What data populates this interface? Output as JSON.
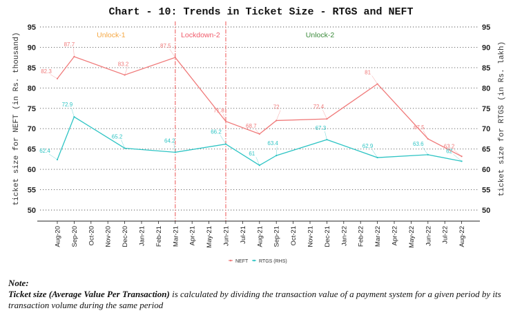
{
  "chart_data": {
    "type": "line",
    "title": "Chart - 10: Trends in Ticket Size - RTGS and NEFT",
    "xlabel": "",
    "ylabel": "ticket size for NEFT (in Rs. thousand)",
    "ylabel_right": "ticket size for RTGS (in Rs. lakh)",
    "ylim": [
      47.5,
      97.5
    ],
    "yticks": [
      50,
      55,
      60,
      65,
      70,
      75,
      80,
      85,
      90,
      95
    ],
    "ylim_right": [
      47.5,
      97.5
    ],
    "yticks_right": [
      50,
      55,
      60,
      65,
      70,
      75,
      80,
      85,
      90,
      95
    ],
    "grid": "horizontal-dotted",
    "categories": [
      "Aug-20",
      "Sep-20",
      "Oct-20",
      "Nov-20",
      "Dec-20",
      "Jan-21",
      "Feb-21",
      "Mar-21",
      "Apr-21",
      "May-21",
      "Jun-21",
      "Jul-21",
      "Aug-21",
      "Sep-21",
      "Oct-21",
      "Nov-21",
      "Dec-21",
      "Jan-22",
      "Feb-22",
      "Mar-22",
      "Apr-22",
      "May-22",
      "Jun-22",
      "Jul-22",
      "Aug-22"
    ],
    "series": [
      {
        "name": "NEFT",
        "color": "#f07a7a",
        "points": [
          {
            "x": "Aug-20",
            "y": 82.3,
            "label": "82.3"
          },
          {
            "x": "Sep-20",
            "y": 87.7,
            "label": "87.7"
          },
          {
            "x": "Dec-20",
            "y": 83.2,
            "label": "83.2"
          },
          {
            "x": "Mar-21",
            "y": 87.5,
            "label": "87.5"
          },
          {
            "x": "Jun-21",
            "y": 71.8,
            "label": "71.8"
          },
          {
            "x": "Aug-21",
            "y": 68.7,
            "label": "68.7"
          },
          {
            "x": "Sep-21",
            "y": 72.0,
            "label": "72"
          },
          {
            "x": "Dec-21",
            "y": 72.4,
            "label": "72.4"
          },
          {
            "x": "Mar-22",
            "y": 81.0,
            "label": "81"
          },
          {
            "x": "Jun-22",
            "y": 67.5,
            "label": "67.5"
          },
          {
            "x": "Aug-22",
            "y": 63.2,
            "label": "63.2"
          }
        ]
      },
      {
        "name": "RTGS (RHS)",
        "color": "#2ec4c4",
        "points": [
          {
            "x": "Aug-20",
            "y": 62.4,
            "label": "62.4"
          },
          {
            "x": "Sep-20",
            "y": 72.9,
            "label": "72.9"
          },
          {
            "x": "Dec-20",
            "y": 65.2,
            "label": "65.2"
          },
          {
            "x": "Mar-21",
            "y": 64.2,
            "label": "64.2"
          },
          {
            "x": "Jun-21",
            "y": 66.2,
            "label": "66.2"
          },
          {
            "x": "Aug-21",
            "y": 61.0,
            "label": "61"
          },
          {
            "x": "Sep-21",
            "y": 63.4,
            "label": "63.4"
          },
          {
            "x": "Dec-21",
            "y": 67.3,
            "label": "67.3"
          },
          {
            "x": "Mar-22",
            "y": 62.9,
            "label": "62.9"
          },
          {
            "x": "Jun-22",
            "y": 63.6,
            "label": "63.6"
          },
          {
            "x": "Aug-22",
            "y": 62.0,
            "label": "62"
          }
        ]
      }
    ],
    "vertical_lines": [
      {
        "x": "Mar-21",
        "color": "#f07a7a",
        "style": "dash-dot"
      },
      {
        "x": "Jun-21",
        "color": "#f07a7a",
        "style": "dash-dot"
      }
    ],
    "annotations": [
      {
        "text": "Unlock-1",
        "from": "Jul-20",
        "to": "Mar-21",
        "color": "#f5a742"
      },
      {
        "text": "Lockdown-2",
        "from": "Mar-21",
        "to": "Jun-21",
        "color": "#f05a6a"
      },
      {
        "text": "Unlock-2",
        "from": "Jun-21",
        "to": "Aug-22",
        "color": "#3a8a3a"
      }
    ],
    "legend": {
      "placement": "bottom",
      "entries": [
        "NEFT",
        "RTGS (RHS)"
      ]
    }
  },
  "note": {
    "title": "Note:",
    "bold_text": "Ticket size (Average Value Per Transaction)",
    "text": " is calculated by dividing the transaction value of a payment system for a given period by its transaction volume during the same period"
  }
}
